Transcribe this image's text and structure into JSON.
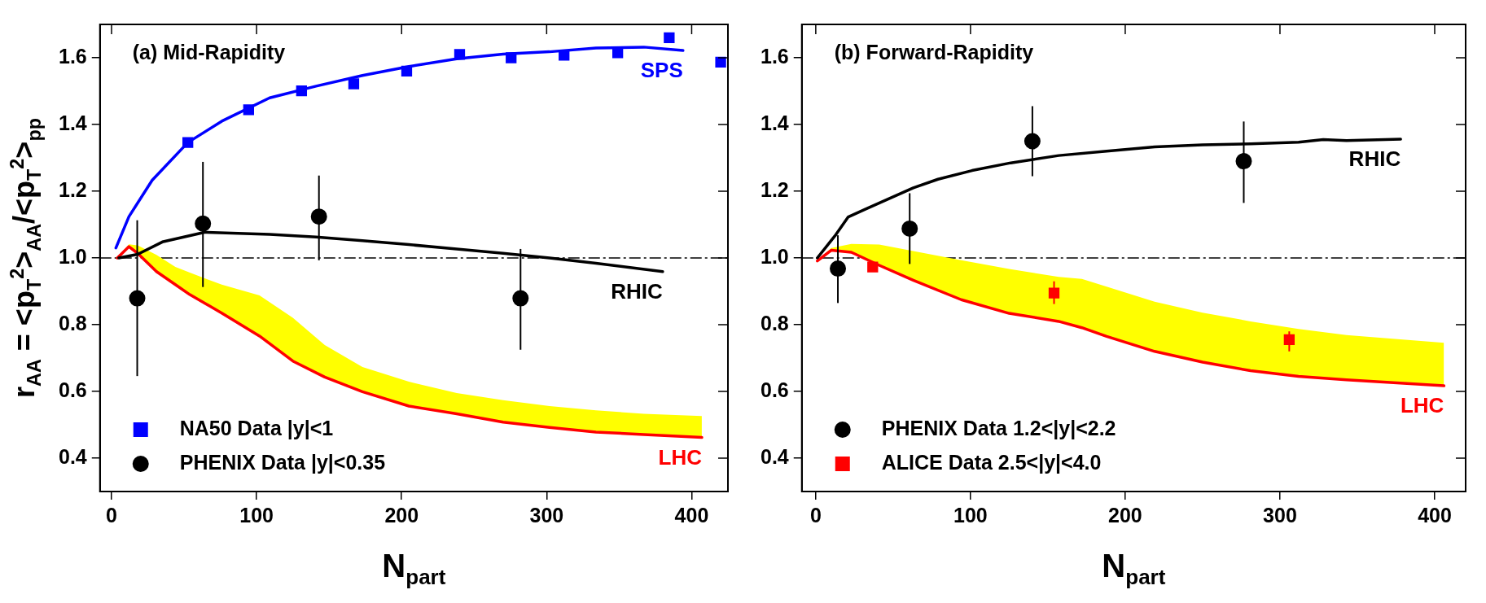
{
  "chart_data": [
    {
      "type": "line",
      "annotations": [
        "(a) Mid-Rapidity"
      ],
      "xlabel": "N$_{part}$",
      "ylabel": "r$_{AA}$ = <p$_{T}$$^{2}$>$_{AA}$/<p$_{T}$$^{2}$>$_{pp}$",
      "xlim": [
        -8,
        425
      ],
      "ylim": [
        0.3,
        1.7
      ],
      "xticks": [
        0,
        100,
        200,
        300,
        400
      ],
      "yticks": [
        0.4,
        0.6,
        0.8,
        {
          "value": 1,
          "label": "1.0"
        },
        1.2,
        1.4,
        1.6
      ],
      "legend": "bottom left",
      "ref_lines": [
        {
          "axis": "y",
          "value": 1,
          "line_style": "dashed",
          "color": "#000000"
        }
      ],
      "series": [
        {
          "name": "SPS",
          "color": "#0000ff",
          "x": [
            3,
            12,
            28,
            52.6,
            76,
            109,
            141,
            173,
            205,
            238,
            270,
            302,
            334,
            367,
            394
          ],
          "values": [
            1.03,
            1.124,
            1.233,
            1.346,
            1.41,
            1.48,
            1.515,
            1.547,
            1.574,
            1.597,
            1.611,
            1.618,
            1.629,
            1.632,
            1.622
          ]
        },
        {
          "name": "RHIC",
          "color": "#000000",
          "x": [
            5,
            18,
            35,
            64,
            109,
            141,
            173,
            205,
            238,
            270,
            302,
            334,
            380
          ],
          "values": [
            1.0,
            1.011,
            1.048,
            1.077,
            1.071,
            1.063,
            1.052,
            1.04,
            1.027,
            1.014,
            1.0,
            0.984,
            0.959
          ]
        },
        {
          "name": "LHC",
          "color": "#ff0000",
          "x": [
            4,
            12,
            18,
            31,
            44,
            54,
            76,
            102,
            125,
            147,
            173,
            205,
            238,
            270,
            302,
            334,
            367,
            407
          ],
          "values": [
            1.0,
            1.034,
            1.014,
            0.959,
            0.92,
            0.89,
            0.835,
            0.766,
            0.691,
            0.643,
            0.599,
            0.556,
            0.533,
            0.508,
            0.492,
            0.478,
            0.471,
            0.462
          ],
          "lower": [
            1.0,
            1.034,
            1.014,
            0.959,
            0.92,
            0.89,
            0.835,
            0.766,
            0.691,
            0.643,
            0.599,
            0.556,
            0.533,
            0.508,
            0.492,
            0.478,
            0.471,
            0.462
          ],
          "upper": [
            1.0,
            1.041,
            1.038,
            1.009,
            0.973,
            0.956,
            0.92,
            0.888,
            0.821,
            0.739,
            0.673,
            0.629,
            0.595,
            0.574,
            0.556,
            0.543,
            0.533,
            0.526
          ]
        },
        {
          "name": "NA50 Data |y|<1",
          "type": "scatter",
          "color": "#0000ff",
          "marker": "square",
          "x": [
            52.6,
            94.5,
            131,
            167,
            203.5,
            240,
            275.5,
            312,
            349,
            384.5,
            420
          ],
          "values": [
            1.346,
            1.444,
            1.501,
            1.522,
            1.56,
            1.61,
            1.6,
            1.608,
            1.615,
            1.66,
            1.587
          ]
        },
        {
          "name": "PHENIX Data |y|<0.35",
          "type": "scatter",
          "color": "#000000",
          "marker": "circle",
          "x": [
            17.7,
            63,
            143,
            282
          ],
          "values": [
            0.879,
            1.103,
            1.124,
            0.879
          ],
          "errors": [
            [
              0.646,
              1.113
            ],
            [
              0.913,
              1.288
            ],
            [
              0.993,
              1.247
            ],
            [
              0.725,
              1.027
            ]
          ]
        }
      ]
    },
    {
      "type": "line",
      "annotations": [
        "(b) Forward-Rapidity"
      ],
      "xlabel": "N$_{part}$",
      "xlim": [
        -9,
        420
      ],
      "ylim": [
        0.3,
        1.7
      ],
      "xticks": [
        0,
        100,
        200,
        300,
        400
      ],
      "yticks": [
        0.4,
        0.6,
        0.8,
        {
          "value": 1,
          "label": "1.0"
        },
        1.2,
        1.4,
        1.6
      ],
      "legend": "bottom left",
      "ref_lines": [
        {
          "axis": "y",
          "value": 1,
          "line_style": "dashed",
          "color": "#000000"
        }
      ],
      "series": [
        {
          "name": "RHIC",
          "color": "#000000",
          "x": [
            1,
            13,
            21,
            32,
            63,
            79,
            101,
            126,
            157,
            188,
            219,
            250,
            281,
            312,
            328,
            343,
            378
          ],
          "values": [
            1.0,
            1.07,
            1.123,
            1.146,
            1.21,
            1.236,
            1.262,
            1.285,
            1.307,
            1.32,
            1.333,
            1.339,
            1.342,
            1.347,
            1.355,
            1.352,
            1.356
          ]
        },
        {
          "name": "LHC",
          "color": "#ff0000",
          "x": [
            1,
            10,
            23,
            41,
            63,
            94,
            125,
            157,
            172,
            188,
            219,
            250,
            281,
            312,
            343,
            406
          ],
          "values": [
            0.991,
            1.023,
            1.017,
            0.978,
            0.933,
            0.875,
            0.834,
            0.81,
            0.791,
            0.765,
            0.72,
            0.688,
            0.662,
            0.645,
            0.635,
            0.617
          ],
          "lower": [
            0.991,
            1.023,
            1.017,
            0.978,
            0.933,
            0.875,
            0.834,
            0.81,
            0.791,
            0.765,
            0.72,
            0.688,
            0.662,
            0.645,
            0.635,
            0.617
          ],
          "upper": [
            0.991,
            1.03,
            1.042,
            1.04,
            1.021,
            0.993,
            0.967,
            0.943,
            0.937,
            0.914,
            0.869,
            0.836,
            0.81,
            0.787,
            0.769,
            0.746
          ]
        },
        {
          "name": "PHENIX Data 1.2<|y|<2.2",
          "type": "scatter",
          "color": "#000000",
          "marker": "circle",
          "x": [
            14.3,
            60.7,
            140,
            276.6
          ],
          "values": [
            0.968,
            1.088,
            1.35,
            1.29
          ],
          "errors": [
            [
              0.865,
              1.068
            ],
            [
              0.982,
              1.194
            ],
            [
              1.245,
              1.455
            ],
            [
              1.165,
              1.409
            ]
          ]
        },
        {
          "name": "ALICE Data 2.5<|y|<4.0",
          "type": "scatter",
          "color": "#ff0000",
          "marker": "square",
          "x": [
            36.8,
            154,
            306
          ],
          "values": [
            0.973,
            0.895,
            0.755
          ],
          "errors": [
            null,
            [
              0.862,
              0.93
            ],
            [
              0.72,
              0.78
            ]
          ]
        }
      ]
    }
  ]
}
